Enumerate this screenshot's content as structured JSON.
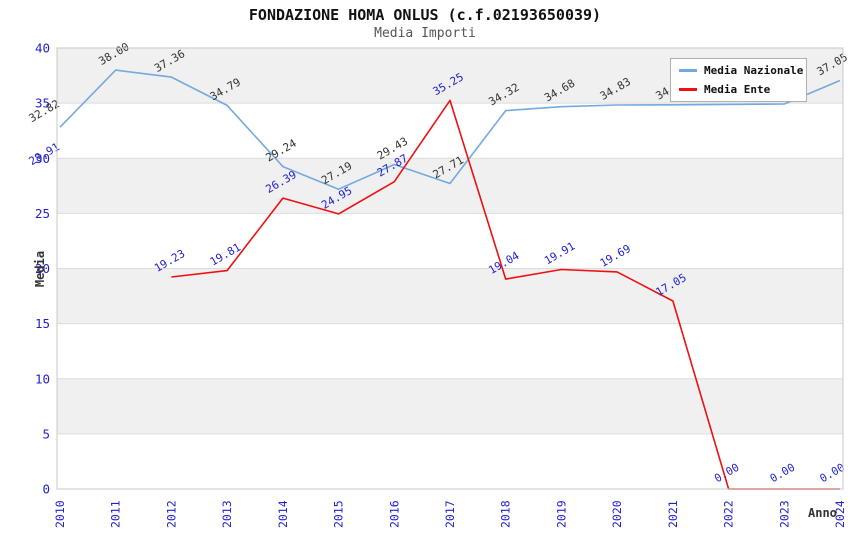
{
  "title": "FONDAZIONE HOMA ONLUS (c.f.02193650039)",
  "subtitle": "Media Importi",
  "colors": {
    "axis_text": "#2222cc",
    "band_fill": "#f0f0f0",
    "grid_line": "#dcdcdc",
    "plot_border": "#c8c8c8",
    "title_text": "#111111",
    "subtitle_text": "#555555",
    "axis_title_text": "#333333"
  },
  "chart_data": {
    "type": "line",
    "x": [
      "2010",
      "2011",
      "2012",
      "2013",
      "2014",
      "2015",
      "2016",
      "2017",
      "2018",
      "2019",
      "2020",
      "2021",
      "2022",
      "2023",
      "2024"
    ],
    "xlabel": "Anno",
    "ylabel": "Media",
    "ylim": [
      0,
      40
    ],
    "ytick_step": 5,
    "grid": "alternating-horizontal-bands",
    "legend_position": "top-right",
    "series": [
      {
        "name": "Media Nazionale",
        "color": "#74a9e0",
        "label_color": "#333333",
        "values": [
          32.82,
          38.0,
          37.36,
          34.79,
          29.24,
          27.19,
          29.43,
          27.71,
          34.32,
          34.68,
          34.83,
          34.85,
          34.88,
          34.92,
          37.05
        ],
        "labels_hidden_by_legend": [
          "2021",
          "2022",
          "2023"
        ]
      },
      {
        "name": "Media Ente",
        "color": "#ee1111",
        "label_color": "#2222cc",
        "values": [
          28.91,
          null,
          19.23,
          19.81,
          26.39,
          24.95,
          27.87,
          35.25,
          19.04,
          19.91,
          19.69,
          17.05,
          0.0,
          0.0,
          0.0
        ]
      }
    ]
  }
}
